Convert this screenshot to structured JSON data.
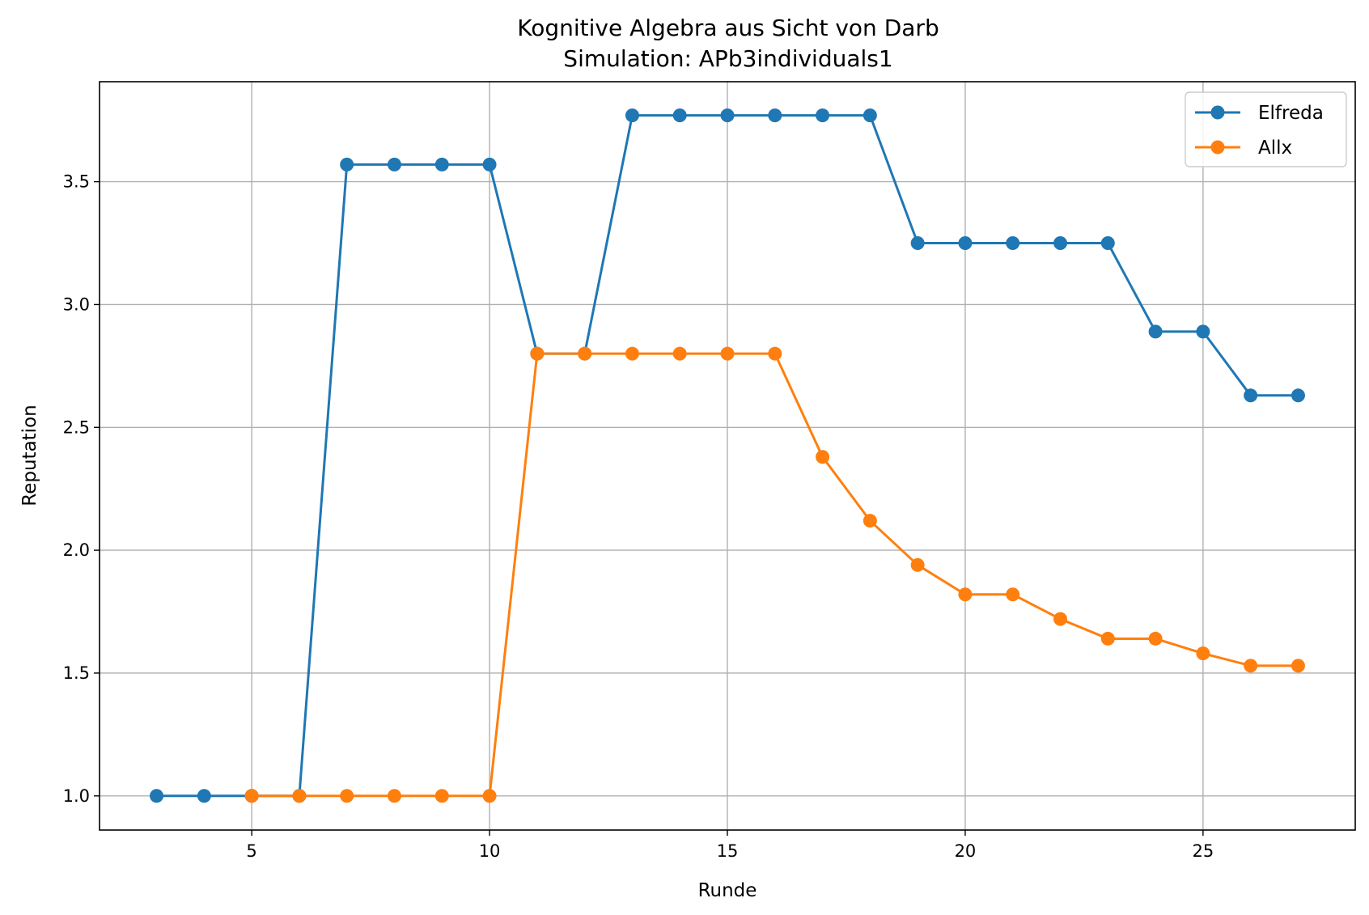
{
  "chart_data": {
    "type": "line",
    "title": "Kognitive Algebra aus Sicht von Darb",
    "subtitle": "Simulation: APb3individuals1",
    "xlabel": "Runde",
    "ylabel": "Reputation",
    "xlim": [
      1.8,
      28.2
    ],
    "ylim": [
      0.861,
      3.907
    ],
    "xticks": [
      5,
      10,
      15,
      20,
      25
    ],
    "yticks": [
      1.0,
      1.5,
      2.0,
      2.5,
      3.0,
      3.5
    ],
    "xtick_labels": [
      "5",
      "10",
      "15",
      "20",
      "25"
    ],
    "ytick_labels": [
      "1.0",
      "1.5",
      "2.0",
      "2.5",
      "3.0",
      "3.5"
    ],
    "grid": true,
    "legend_position": "top-right",
    "series": [
      {
        "name": "Elfreda",
        "color": "#1f77b4",
        "marker": "circle",
        "x": [
          3,
          4,
          5,
          6,
          7,
          8,
          9,
          10,
          11,
          12,
          13,
          14,
          15,
          16,
          17,
          18,
          19,
          20,
          21,
          22,
          23,
          24,
          25,
          26,
          27
        ],
        "y": [
          1.0,
          1.0,
          1.0,
          1.0,
          3.57,
          3.57,
          3.57,
          3.57,
          2.8,
          2.8,
          3.77,
          3.77,
          3.77,
          3.77,
          3.77,
          3.77,
          3.25,
          3.25,
          3.25,
          3.25,
          3.25,
          2.89,
          2.89,
          2.63,
          2.63
        ]
      },
      {
        "name": "Allx",
        "color": "#ff7f0e",
        "marker": "circle",
        "x": [
          5,
          6,
          7,
          8,
          9,
          10,
          11,
          12,
          13,
          14,
          15,
          16,
          17,
          18,
          19,
          20,
          21,
          22,
          23,
          24,
          25,
          26,
          27
        ],
        "y": [
          1.0,
          1.0,
          1.0,
          1.0,
          1.0,
          1.0,
          2.8,
          2.8,
          2.8,
          2.8,
          2.8,
          2.8,
          2.38,
          2.12,
          1.94,
          1.82,
          1.82,
          1.72,
          1.64,
          1.64,
          1.58,
          1.53,
          1.53
        ]
      }
    ]
  }
}
